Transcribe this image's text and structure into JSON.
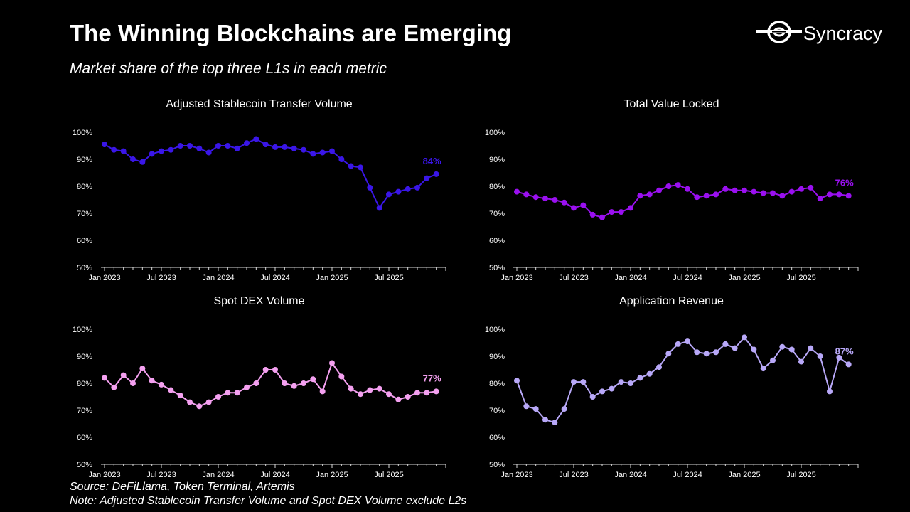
{
  "header": {
    "title": "The Winning Blockchains are Emerging",
    "subtitle": "Market share of the top three L1s in each metric",
    "brand": "Syncracy"
  },
  "footer": {
    "source": "Source: DeFiLlama, Token Terminal, Artemis",
    "note": "Note: Adjusted Stablecoin Transfer Volume and Spot DEX Volume exclude L2s"
  },
  "chart_data": [
    {
      "type": "line",
      "title": "Adjusted Stablecoin Transfer Volume",
      "color": "#3a16e8",
      "ylim": [
        50,
        100
      ],
      "yticks": [
        "100%",
        "90%",
        "80%",
        "70%",
        "60%",
        "50%"
      ],
      "xticks": [
        "Jan 2023",
        "Jul 2023",
        "Jan 2024",
        "Jul 2024",
        "Jan 2025",
        "Jul 2025"
      ],
      "x_start": "2023-01",
      "x_step": "month",
      "values": [
        95.5,
        93.5,
        93,
        90,
        89,
        92,
        93,
        93.5,
        95,
        95,
        94,
        92.5,
        95,
        95,
        94,
        96,
        97.5,
        95.5,
        94.5,
        94.5,
        94,
        93.5,
        92,
        92.5,
        93,
        90,
        87.5,
        87,
        79.5,
        72,
        77,
        78,
        79,
        79.5,
        83,
        84.5
      ],
      "end_label": "84%"
    },
    {
      "type": "line",
      "title": "Total Value Locked",
      "color": "#9a10f0",
      "ylim": [
        50,
        100
      ],
      "yticks": [
        "100%",
        "90%",
        "80%",
        "70%",
        "60%",
        "50%"
      ],
      "xticks": [
        "Jan 2023",
        "Jul 2023",
        "Jan 2024",
        "Jul 2024",
        "Jan 2025",
        "Jul 2025"
      ],
      "x_start": "2023-01",
      "x_step": "month",
      "values": [
        78,
        77,
        76,
        75.5,
        75,
        74,
        72,
        73,
        69.5,
        68.5,
        70.5,
        70.5,
        72,
        76.5,
        77,
        78.5,
        80,
        80.5,
        79,
        76,
        76.5,
        77,
        79,
        78.5,
        78.5,
        78,
        77.5,
        77.5,
        76.5,
        78,
        79,
        79.5,
        75.5,
        77,
        77,
        76.5
      ],
      "end_label": "76%"
    },
    {
      "type": "line",
      "title": "Spot DEX Volume",
      "color": "#f4a0f0",
      "ylim": [
        50,
        100
      ],
      "yticks": [
        "100%",
        "90%",
        "80%",
        "70%",
        "60%",
        "50%"
      ],
      "xticks": [
        "Jan 2023",
        "Jul 2023",
        "Jan 2024",
        "Jul 2024",
        "Jan 2025",
        "Jul 2025"
      ],
      "x_start": "2023-01",
      "x_step": "month",
      "values": [
        82,
        78.5,
        83,
        80,
        85.5,
        81,
        79.5,
        77.5,
        75.5,
        73,
        71.5,
        73,
        75,
        76.5,
        76.5,
        78.5,
        80,
        85,
        85,
        80,
        79,
        80,
        81.5,
        77,
        87.5,
        82.5,
        78,
        76,
        77.5,
        78,
        76,
        74,
        75,
        76.5,
        76.5,
        77
      ],
      "end_label": "77%"
    },
    {
      "type": "line",
      "title": "Application Revenue",
      "color": "#b8a8f8",
      "ylim": [
        50,
        100
      ],
      "yticks": [
        "100%",
        "90%",
        "80%",
        "70%",
        "60%",
        "50%"
      ],
      "xticks": [
        "Jan 2023",
        "Jul 2023",
        "Jan 2024",
        "Jul 2024",
        "Jan 2025",
        "Jul 2025"
      ],
      "x_start": "2023-01",
      "x_step": "month",
      "values": [
        81,
        71.5,
        70.5,
        66.5,
        65.5,
        70.5,
        80.5,
        80.5,
        75,
        77,
        78,
        80.5,
        80,
        82,
        83.5,
        86,
        91,
        94.5,
        95.5,
        91.5,
        91,
        91.5,
        94.5,
        93,
        97,
        92.5,
        85.5,
        88.5,
        93.5,
        92.5,
        88,
        93,
        90,
        77,
        89.5,
        87
      ],
      "end_label": "87%"
    }
  ]
}
